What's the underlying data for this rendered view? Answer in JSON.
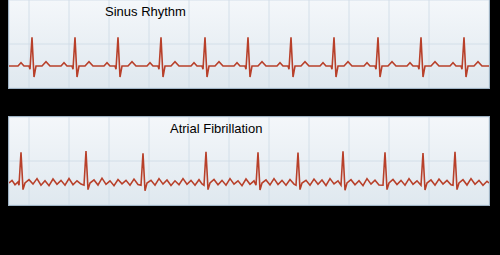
{
  "chart_data": [
    {
      "type": "line",
      "title": "Sinus Rhythm",
      "color": "#b8402a",
      "grid": true,
      "tick_labels": false,
      "xlim": [
        0,
        480
      ],
      "ylim": [
        -10,
        30
      ],
      "xticks": [
        0,
        20,
        40,
        60,
        80,
        100,
        120,
        140,
        160,
        180,
        200,
        220,
        240,
        260,
        280,
        300,
        320,
        340,
        360,
        380,
        400,
        420,
        440,
        460,
        480
      ],
      "yticks": [
        -10,
        0,
        10,
        20,
        30
      ],
      "x": [
        0,
        9,
        12,
        15,
        20,
        21,
        23,
        25,
        27,
        33,
        37,
        41,
        52,
        55,
        58,
        63,
        64,
        66,
        68,
        70,
        76,
        80,
        84,
        95,
        98,
        101,
        106,
        107,
        109,
        111,
        113,
        119,
        123,
        127,
        138,
        141,
        144,
        149,
        150,
        152,
        154,
        156,
        162,
        166,
        170,
        182,
        185,
        188,
        193,
        194,
        196,
        198,
        200,
        206,
        210,
        214,
        225,
        228,
        231,
        236,
        237,
        239,
        241,
        243,
        249,
        253,
        257,
        268,
        271,
        274,
        279,
        280,
        282,
        284,
        286,
        292,
        296,
        300,
        311,
        314,
        317,
        322,
        323,
        325,
        327,
        329,
        335,
        339,
        343,
        355,
        358,
        361,
        366,
        367,
        369,
        371,
        373,
        379,
        383,
        387,
        398,
        401,
        404,
        409,
        410,
        412,
        414,
        416,
        422,
        426,
        430,
        441,
        444,
        447,
        452,
        453,
        455,
        457,
        459,
        465,
        469,
        473,
        480
      ],
      "values": [
        0,
        0,
        1.5,
        0,
        0,
        -1.5,
        13,
        -5,
        0,
        0,
        2,
        0,
        0,
        1.5,
        0,
        0,
        -1.5,
        13,
        -5,
        0,
        0,
        2,
        0,
        0,
        1.5,
        0,
        0,
        -1.5,
        13,
        -5,
        0,
        0,
        2,
        0,
        0,
        1.5,
        0,
        0,
        -1.5,
        13,
        -5,
        0,
        0,
        2,
        0,
        0,
        1.5,
        0,
        0,
        -1.5,
        13,
        -5,
        0,
        0,
        2,
        0,
        0,
        1.5,
        0,
        0,
        -1.5,
        13,
        -5,
        0,
        0,
        2,
        0,
        0,
        1.5,
        0,
        0,
        -1.5,
        13,
        -5,
        0,
        0,
        2,
        0,
        0,
        1.5,
        0,
        0,
        -1.5,
        13,
        -5,
        0,
        0,
        2,
        0,
        0,
        1.5,
        0,
        0,
        -1.5,
        13,
        -5,
        0,
        0,
        2,
        0,
        0,
        1.5,
        0,
        0,
        -1.5,
        13,
        -5,
        0,
        0,
        2,
        0,
        0,
        1.5,
        0,
        0,
        -1.5,
        13,
        -5,
        0,
        0,
        2,
        0,
        0
      ]
    },
    {
      "type": "line",
      "title": "Atrial Fibrillation",
      "color": "#b8402a",
      "grid": true,
      "tick_labels": false,
      "xlim": [
        0,
        480
      ],
      "ylim": [
        -10,
        30
      ],
      "xticks": [
        0,
        20,
        40,
        60,
        80,
        100,
        120,
        140,
        160,
        180,
        200,
        220,
        240,
        260,
        280,
        300,
        320,
        340,
        360,
        380,
        400,
        420,
        440,
        460,
        480
      ],
      "yticks": [
        -10,
        0,
        10,
        20,
        30
      ],
      "x": [
        0,
        3,
        6,
        9,
        10,
        12,
        14,
        16,
        20,
        24,
        28,
        32,
        36,
        40,
        44,
        48,
        52,
        56,
        60,
        64,
        68,
        72,
        75,
        77,
        79,
        81,
        85,
        89,
        93,
        97,
        101,
        105,
        109,
        113,
        117,
        121,
        125,
        129,
        132,
        134,
        136,
        138,
        142,
        146,
        150,
        154,
        158,
        162,
        166,
        170,
        174,
        178,
        182,
        186,
        190,
        193,
        195,
        197,
        199,
        201,
        205,
        209,
        213,
        217,
        221,
        225,
        229,
        233,
        237,
        241,
        245,
        247,
        249,
        251,
        253,
        257,
        261,
        265,
        269,
        273,
        277,
        281,
        285,
        287,
        289,
        291,
        293,
        297,
        301,
        305,
        309,
        313,
        317,
        321,
        325,
        329,
        332,
        334,
        336,
        338,
        342,
        346,
        350,
        354,
        358,
        362,
        366,
        370,
        374,
        376,
        378,
        380,
        384,
        388,
        392,
        396,
        400,
        404,
        408,
        412,
        414,
        416,
        418,
        422,
        426,
        430,
        434,
        438,
        442,
        444,
        446,
        448,
        450,
        454,
        458,
        462,
        466,
        470,
        474,
        478,
        480
      ],
      "values": [
        0,
        1.2,
        -0.8,
        0.5,
        -1,
        14,
        -3,
        0,
        1.5,
        -0.5,
        2,
        -1,
        1,
        -1.2,
        1.8,
        -0.6,
        1.2,
        -1,
        2,
        -0.8,
        1,
        -0.5,
        -1,
        14.5,
        -3,
        0,
        1.4,
        -0.9,
        2.2,
        -0.6,
        1,
        -1.2,
        1.6,
        -0.4,
        1.2,
        -1,
        1.8,
        -0.7,
        -1,
        13.5,
        -3.5,
        0,
        1.2,
        -1,
        2,
        -0.5,
        1.4,
        -1.1,
        1,
        -0.8,
        2,
        -0.6,
        1.2,
        -1,
        1.5,
        -0.4,
        -1,
        14.2,
        -3,
        0,
        1.6,
        -0.8,
        1.2,
        -1,
        2,
        -0.5,
        1,
        -1.2,
        1.8,
        -0.6,
        1,
        -1,
        14,
        -3.2,
        0,
        1.4,
        -0.9,
        2,
        -0.7,
        1.2,
        -1,
        1.6,
        -0.5,
        -1,
        13.8,
        -3,
        0,
        1.2,
        -1,
        1.8,
        -0.6,
        1.4,
        -1.1,
        2,
        -0.4,
        1,
        -1,
        14.4,
        -3.3,
        0,
        1.5,
        -0.8,
        1,
        -1.2,
        2,
        -0.5,
        1.3,
        -0.9,
        -1,
        14,
        -3,
        0,
        1.6,
        -0.7,
        1.2,
        -1,
        2,
        -0.6,
        1,
        -1,
        13.6,
        -3.2,
        0,
        1.4,
        -1,
        1.8,
        -0.5,
        1.2,
        -0.8,
        -1,
        14.2,
        -3,
        0,
        1.5,
        -0.9,
        2,
        -0.6,
        1.2,
        -1,
        0.8,
        0
      ]
    }
  ]
}
